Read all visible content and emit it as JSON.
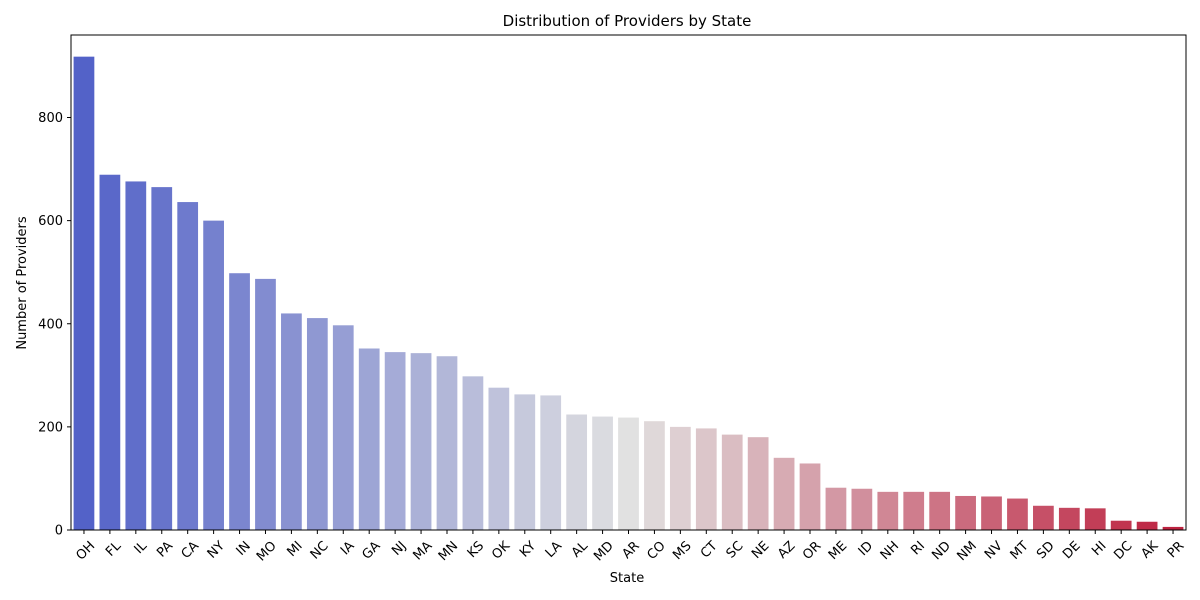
{
  "chart_data": {
    "type": "bar",
    "title": "Distribution of Providers by State",
    "xlabel": "State",
    "ylabel": "Number of Providers",
    "ylim": [
      0,
      960
    ],
    "yticks": [
      0,
      200,
      400,
      600,
      800
    ],
    "grid": false,
    "legend": "none",
    "palette": "coolwarm",
    "colors": {
      "low": "#3b4cc0",
      "mid": "#dddddd",
      "high": "#b40426"
    },
    "categories": [
      "OH",
      "FL",
      "IL",
      "PA",
      "CA",
      "NY",
      "IN",
      "MO",
      "MI",
      "NC",
      "IA",
      "GA",
      "NJ",
      "MA",
      "MN",
      "KS",
      "OK",
      "KY",
      "LA",
      "AL",
      "MD",
      "AR",
      "CO",
      "MS",
      "CT",
      "SC",
      "NE",
      "AZ",
      "OR",
      "ME",
      "ID",
      "NH",
      "RI",
      "ND",
      "NM",
      "NV",
      "MT",
      "SD",
      "DE",
      "HI",
      "DC",
      "AK",
      "PR"
    ],
    "values": [
      918,
      689,
      676,
      665,
      636,
      600,
      498,
      487,
      420,
      411,
      397,
      352,
      345,
      343,
      337,
      298,
      276,
      263,
      261,
      224,
      220,
      218,
      211,
      200,
      197,
      185,
      180,
      140,
      129,
      82,
      80,
      74,
      74,
      74,
      66,
      65,
      61,
      47,
      43,
      42,
      18,
      16,
      6
    ]
  }
}
